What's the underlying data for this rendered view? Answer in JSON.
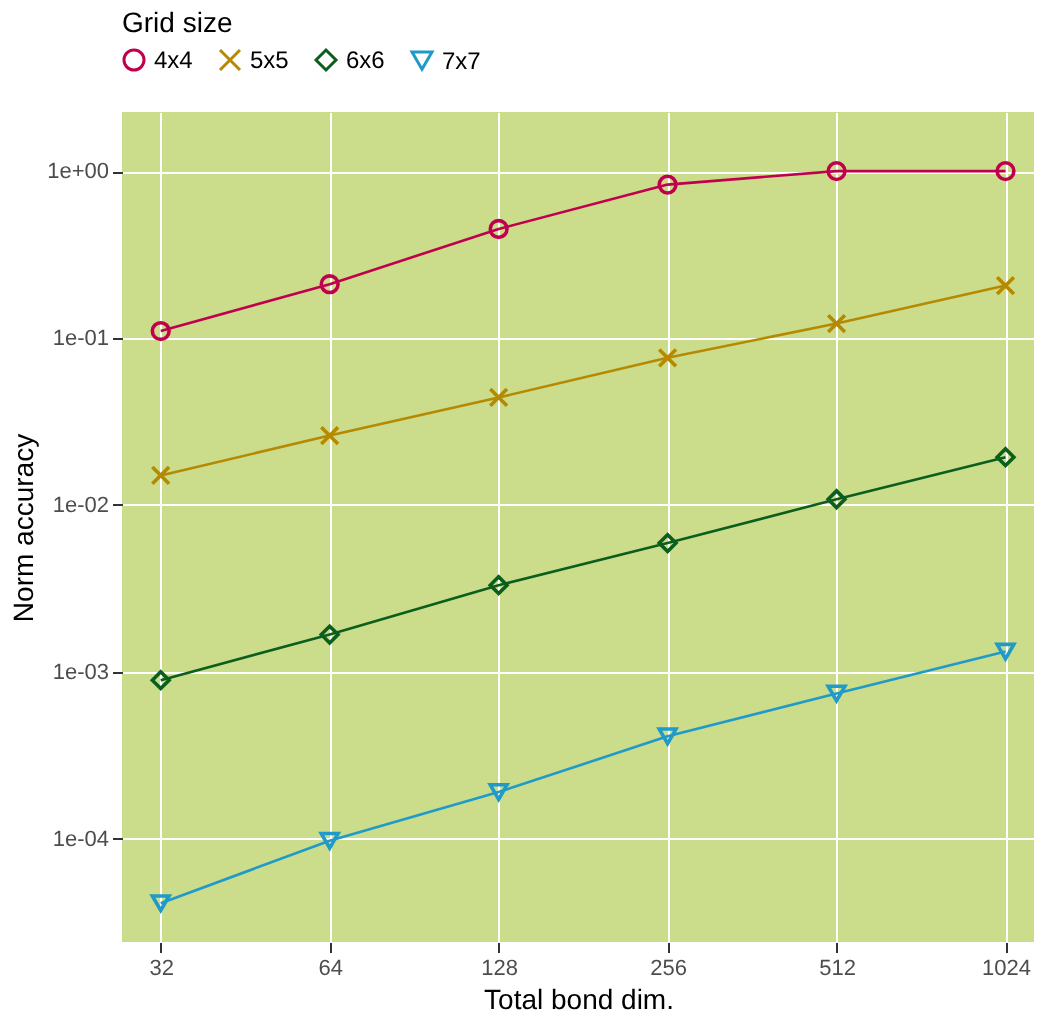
{
  "chart_data": {
    "type": "line",
    "xlabel": "Total bond dim.",
    "ylabel": "Norm accuracy",
    "legend_title": "Grid size",
    "legend": "top",
    "x": [
      32,
      64,
      128,
      256,
      512,
      1024
    ],
    "series": [
      {
        "name": "4x4",
        "color": "#c0004e",
        "marker": "circle",
        "values": [
          0.11,
          0.21,
          0.45,
          0.83,
          1.0,
          1.0
        ]
      },
      {
        "name": "5x5",
        "color": "#b58900",
        "marker": "cross",
        "values": [
          0.015,
          0.026,
          0.044,
          0.076,
          0.122,
          0.206
        ]
      },
      {
        "name": "6x6",
        "color": "#0b5e1d",
        "marker": "diamond",
        "values": [
          0.00089,
          0.00167,
          0.0033,
          0.0059,
          0.0108,
          0.0193
        ]
      },
      {
        "name": "7x7",
        "color": "#1f9ac9",
        "marker": "triangle-down",
        "values": [
          4.1e-05,
          9.7e-05,
          0.00019,
          0.00041,
          0.00074,
          0.00132
        ]
      }
    ],
    "log": "xy",
    "xlim": [
      27.3,
      1151
    ],
    "xticks": [
      32,
      64,
      128,
      256,
      512,
      1024
    ],
    "ylim": [
      2.4e-05,
      2.26
    ],
    "yticks": [
      {
        "value": 1,
        "label": "1e+00"
      },
      {
        "value": 0.1,
        "label": "1e-01"
      },
      {
        "value": 0.01,
        "label": "1e-02"
      },
      {
        "value": 0.001,
        "label": "1e-03"
      },
      {
        "value": 0.0001,
        "label": "1e-04"
      }
    ],
    "grid": true,
    "line_style": "solid"
  }
}
